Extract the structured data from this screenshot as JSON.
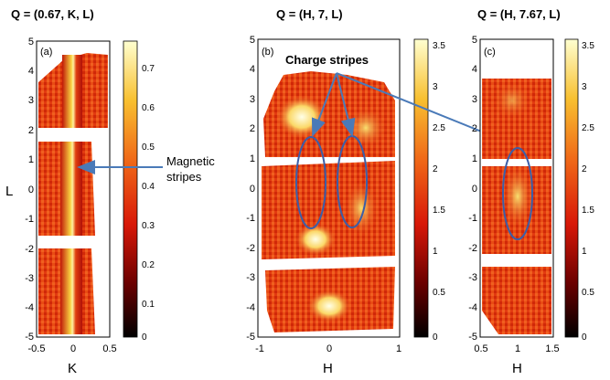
{
  "figure": {
    "panels": [
      {
        "id": "a",
        "title": "Q = (0.67, K, L)",
        "tag": "(a)",
        "xlabel": "K",
        "ylabel": "L",
        "x_ticks": [
          "-0.5",
          "0",
          "0.5"
        ],
        "y_ticks": [
          "5",
          "4",
          "3",
          "2",
          "1",
          "0",
          "-1",
          "-2",
          "-3",
          "-4",
          "-5"
        ],
        "colorbar_ticks": [
          "0.7",
          "0.6",
          "0.5",
          "0.4",
          "0.3",
          "0.2",
          "0.1",
          "0"
        ],
        "colorbar_range": [
          0,
          0.75
        ]
      },
      {
        "id": "b",
        "title": "Q = (H, 7, L)",
        "tag": "(b)",
        "xlabel": "H",
        "x_ticks": [
          "-1",
          "0",
          "1"
        ],
        "y_ticks": [
          "5",
          "4",
          "3",
          "2",
          "1",
          "0",
          "-1",
          "-2",
          "-3",
          "-4",
          "-5"
        ],
        "colorbar_ticks": [
          "3.5",
          "3",
          "2.5",
          "2",
          "1.5",
          "1",
          "0.5",
          "0"
        ],
        "colorbar_range": [
          0,
          3.6
        ]
      },
      {
        "id": "c",
        "title": "Q = (H, 7.67, L)",
        "tag": "(c)",
        "xlabel": "H",
        "x_ticks": [
          "0.5",
          "1",
          "1.5"
        ],
        "y_ticks": [
          "5",
          "4",
          "3",
          "2",
          "1",
          "0",
          "-1",
          "-2",
          "-3",
          "-4",
          "-5"
        ],
        "colorbar_ticks": [
          "3.5",
          "3",
          "2.5",
          "2",
          "1.5",
          "1",
          "0.5",
          "0"
        ],
        "colorbar_range": [
          0,
          3.6
        ]
      }
    ],
    "annotations": {
      "magnetic_line1": "Magnetic",
      "magnetic_line2": "stripes",
      "charge": "Charge stripes"
    },
    "colors": {
      "arrow": "#4a7ab8",
      "ellipse": "#3b5ea8",
      "map_low": "#1a0000",
      "map_mid": "#e03010",
      "map_high": "#ffffd0"
    }
  }
}
